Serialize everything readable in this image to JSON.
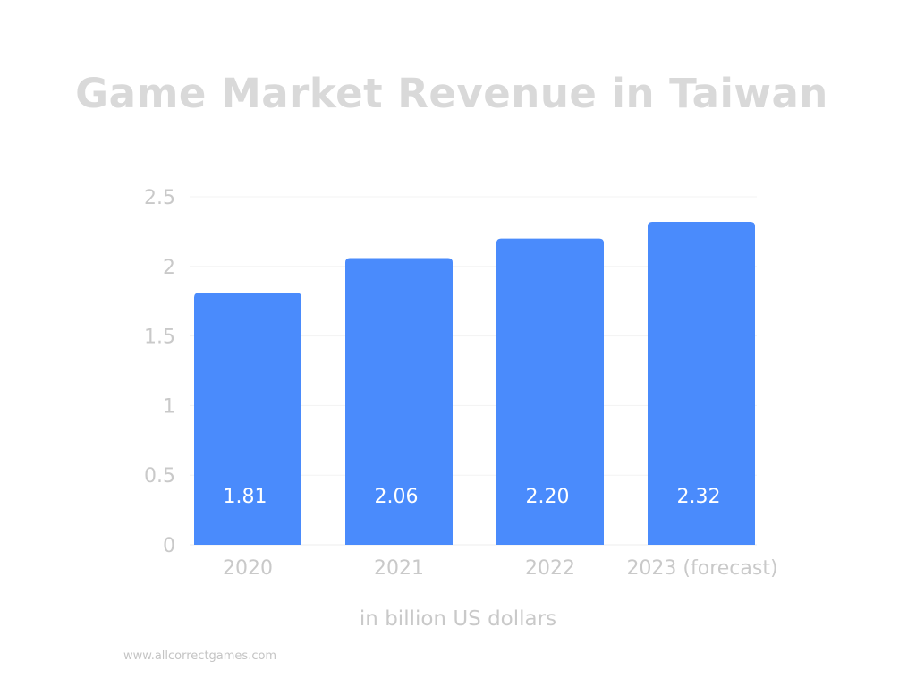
{
  "chart_data": {
    "type": "bar",
    "title": "Game Market Revenue in Taiwan",
    "categories": [
      "2020",
      "2021",
      "2022",
      "2023 (forecast)"
    ],
    "values": [
      1.81,
      2.06,
      2.2,
      2.32
    ],
    "data_labels": [
      "1.81",
      "2.06",
      "2.20",
      "2.32"
    ],
    "y_ticks": [
      "0",
      "0.5",
      "1",
      "1.5",
      "2",
      "2.5"
    ],
    "ylim": [
      0,
      2.5
    ],
    "xlabel": "in billion US dollars",
    "ylabel": "",
    "grid": true,
    "bar_color": "#4a8bfc"
  },
  "footer": {
    "watermark": "www.allcorrectgames.com"
  }
}
